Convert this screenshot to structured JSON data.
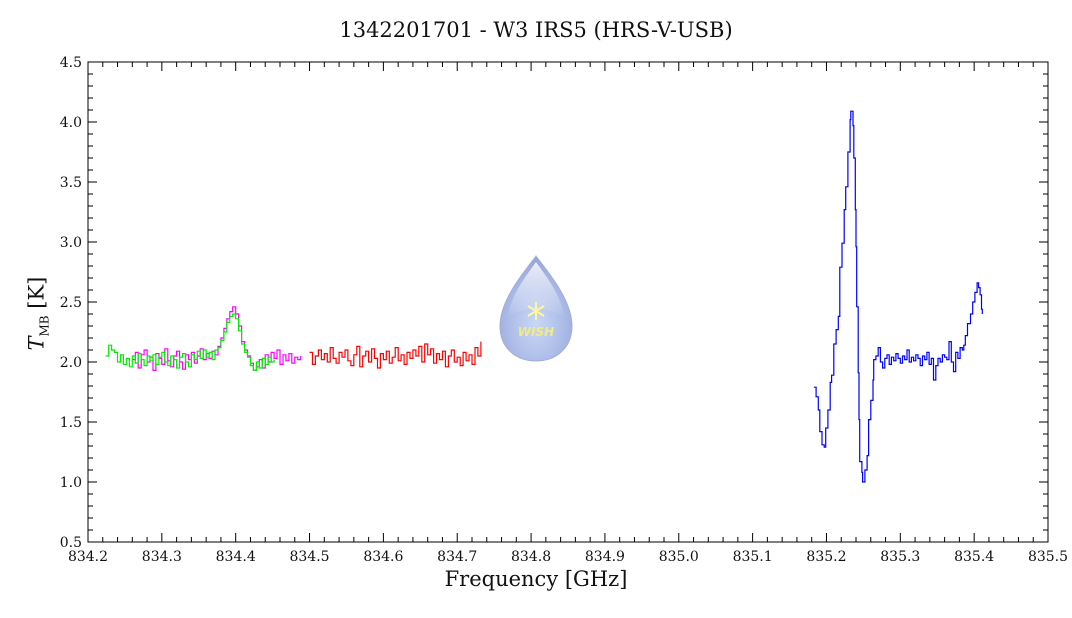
{
  "chart_data": {
    "type": "line",
    "title": "1342201701 - W3 IRS5 (HRS-V-USB)",
    "xlabel": "Frequency [GHz]",
    "ylabel": {
      "symbol": "T",
      "subscript": "MB",
      "unit": "[K]"
    },
    "xlim": [
      834.2,
      835.5
    ],
    "ylim": [
      0.5,
      4.5
    ],
    "xticks": [
      "834.2",
      "834.3",
      "834.4",
      "834.5",
      "834.6",
      "834.7",
      "834.8",
      "834.9",
      "835.0",
      "835.1",
      "835.2",
      "835.3",
      "835.4",
      "835.5"
    ],
    "yticks": [
      "0.5",
      "1.0",
      "1.5",
      "2.0",
      "2.5",
      "3.0",
      "3.5",
      "4.0",
      "4.5"
    ],
    "grid": false,
    "logo_text": "WISH",
    "series": [
      {
        "name": "magenta",
        "color": "#ff00ff",
        "x": [
          834.26,
          834.264,
          834.268,
          834.272,
          834.276,
          834.28,
          834.284,
          834.288,
          834.292,
          834.296,
          834.3,
          834.304,
          834.308,
          834.312,
          834.316,
          834.32,
          834.324,
          834.328,
          834.332,
          834.336,
          834.34,
          834.344,
          834.348,
          834.352,
          834.356,
          834.36,
          834.364,
          834.368,
          834.372,
          834.376,
          834.38,
          834.384,
          834.388,
          834.392,
          834.396,
          834.4,
          834.404,
          834.408,
          834.412,
          834.416,
          834.42,
          834.424,
          834.428,
          834.432,
          834.436,
          834.44,
          834.444,
          834.448,
          834.452,
          834.456,
          834.46,
          834.464,
          834.468,
          834.472,
          834.476,
          834.48,
          834.484,
          834.488
        ],
        "y": [
          2.02,
          2.08,
          1.95,
          2.06,
          2.1,
          2.0,
          2.04,
          1.93,
          2.07,
          2.03,
          1.98,
          2.11,
          2.01,
          1.96,
          2.05,
          2.09,
          2.0,
          1.94,
          2.06,
          2.02,
          2.08,
          1.99,
          2.05,
          2.11,
          2.02,
          2.07,
          2.03,
          2.09,
          2.06,
          2.13,
          2.2,
          2.28,
          2.36,
          2.42,
          2.46,
          2.4,
          2.3,
          2.17,
          2.1,
          2.05,
          1.99,
          1.93,
          1.96,
          2.02,
          1.95,
          2.06,
          2.0,
          2.08,
          2.03,
          2.1,
          1.98,
          2.06,
          2.01,
          2.07,
          1.99,
          2.04,
          2.02,
          2.05
        ]
      },
      {
        "name": "green",
        "color": "#00ee00",
        "x": [
          834.224,
          834.228,
          834.232,
          834.236,
          834.24,
          834.244,
          834.248,
          834.252,
          834.256,
          834.26,
          834.264,
          834.268,
          834.272,
          834.276,
          834.28,
          834.284,
          834.288,
          834.292,
          834.296,
          834.3,
          834.304,
          834.308,
          834.312,
          834.316,
          834.32,
          834.324,
          834.328,
          834.332,
          834.336,
          834.34,
          834.344,
          834.348,
          834.352,
          834.356,
          834.36,
          834.364,
          834.368,
          834.372,
          834.376,
          834.38,
          834.384,
          834.388,
          834.392,
          834.396,
          834.4,
          834.404,
          834.408,
          834.412,
          834.416,
          834.42,
          834.424,
          834.428,
          834.432,
          834.436,
          834.44,
          834.444,
          834.448,
          834.452
        ],
        "y": [
          2.05,
          2.14,
          2.1,
          2.08,
          2.0,
          2.06,
          1.98,
          2.03,
          1.96,
          2.05,
          1.99,
          2.07,
          2.02,
          1.97,
          2.05,
          2.01,
          2.06,
          1.98,
          2.04,
          2.08,
          2.0,
          1.97,
          2.05,
          2.02,
          1.95,
          2.04,
          2.07,
          2.0,
          1.96,
          2.06,
          2.02,
          2.09,
          2.03,
          2.1,
          2.04,
          2.08,
          2.02,
          2.1,
          2.12,
          2.18,
          2.25,
          2.33,
          2.38,
          2.4,
          2.36,
          2.26,
          2.15,
          2.08,
          2.04,
          1.97,
          1.93,
          2.0,
          1.95,
          2.03,
          1.98,
          2.04,
          2.0,
          2.02
        ]
      },
      {
        "name": "red",
        "color": "#ff0000",
        "x": [
          834.5,
          834.504,
          834.508,
          834.512,
          834.516,
          834.52,
          834.524,
          834.528,
          834.532,
          834.536,
          834.54,
          834.544,
          834.548,
          834.552,
          834.556,
          834.56,
          834.564,
          834.568,
          834.572,
          834.576,
          834.58,
          834.584,
          834.588,
          834.592,
          834.596,
          834.6,
          834.604,
          834.608,
          834.612,
          834.616,
          834.62,
          834.624,
          834.628,
          834.632,
          834.636,
          834.64,
          834.644,
          834.648,
          834.652,
          834.656,
          834.66,
          834.664,
          834.668,
          834.672,
          834.676,
          834.68,
          834.684,
          834.688,
          834.692,
          834.696,
          834.7,
          834.704,
          834.708,
          834.712,
          834.716,
          834.72,
          834.724,
          834.728,
          834.732
        ],
        "y": [
          2.08,
          1.98,
          2.05,
          2.1,
          2.02,
          2.07,
          2.0,
          2.12,
          2.03,
          1.99,
          2.08,
          2.04,
          2.1,
          2.01,
          1.97,
          2.06,
          2.13,
          1.96,
          2.05,
          2.09,
          2.0,
          2.11,
          2.03,
          1.95,
          2.07,
          2.02,
          2.09,
          1.99,
          2.04,
          2.12,
          2.01,
          2.06,
          1.98,
          2.08,
          2.03,
          2.1,
          2.05,
          2.13,
          2.0,
          2.15,
          2.06,
          2.11,
          1.99,
          2.07,
          2.02,
          2.09,
          1.96,
          2.05,
          2.1,
          2.0,
          2.04,
          1.97,
          2.08,
          2.01,
          2.06,
          1.98,
          2.12,
          2.05,
          2.17
        ]
      },
      {
        "name": "blue",
        "color": "#0000ff",
        "x": [
          835.183,
          835.186,
          835.189,
          835.191,
          835.194,
          835.197,
          835.199,
          835.202,
          835.205,
          835.207,
          835.21,
          835.213,
          835.216,
          835.218,
          835.221,
          835.224,
          835.226,
          835.229,
          835.232,
          835.233,
          835.236,
          835.237,
          835.239,
          835.24,
          835.241,
          835.243,
          835.244,
          835.245,
          835.248,
          835.249,
          835.252,
          835.255,
          835.257,
          835.26,
          835.263,
          835.264,
          835.267,
          835.27,
          835.273,
          835.276,
          835.279,
          835.282,
          835.285,
          835.288,
          835.291,
          835.294,
          835.297,
          835.3,
          835.303,
          835.306,
          835.309,
          835.312,
          835.315,
          835.318,
          835.321,
          835.324,
          835.327,
          835.33,
          835.333,
          835.336,
          835.339,
          835.342,
          835.345,
          835.348,
          835.351,
          835.354,
          835.357,
          835.36,
          835.363,
          835.366,
          835.369,
          835.372,
          835.375,
          835.378,
          835.381,
          835.384,
          835.386,
          835.388,
          835.391,
          835.395,
          835.398,
          835.401,
          835.404,
          835.406,
          835.408,
          835.41,
          835.411
        ],
        "y": [
          1.79,
          1.71,
          1.6,
          1.42,
          1.31,
          1.29,
          1.45,
          1.6,
          1.83,
          1.89,
          2.15,
          2.27,
          2.38,
          2.79,
          2.99,
          3.27,
          3.46,
          3.75,
          4.02,
          4.09,
          3.97,
          3.7,
          3.27,
          2.96,
          2.46,
          1.91,
          1.52,
          1.17,
          1.08,
          1.0,
          1.1,
          1.22,
          1.52,
          1.68,
          1.85,
          2.02,
          2.05,
          2.12,
          2.0,
          1.95,
          2.03,
          2.06,
          1.98,
          2.04,
          2.01,
          2.07,
          2.03,
          1.99,
          2.05,
          2.02,
          2.1,
          2.0,
          2.04,
          2.01,
          2.06,
          2.03,
          1.97,
          2.05,
          2.02,
          2.08,
          1.98,
          2.03,
          1.85,
          1.97,
          2.03,
          2.0,
          2.06,
          2.04,
          2.02,
          2.17,
          2.0,
          1.92,
          2.08,
          2.03,
          2.12,
          2.1,
          2.14,
          2.22,
          2.32,
          2.4,
          2.5,
          2.58,
          2.66,
          2.62,
          2.56,
          2.44,
          2.4
        ]
      }
    ]
  }
}
